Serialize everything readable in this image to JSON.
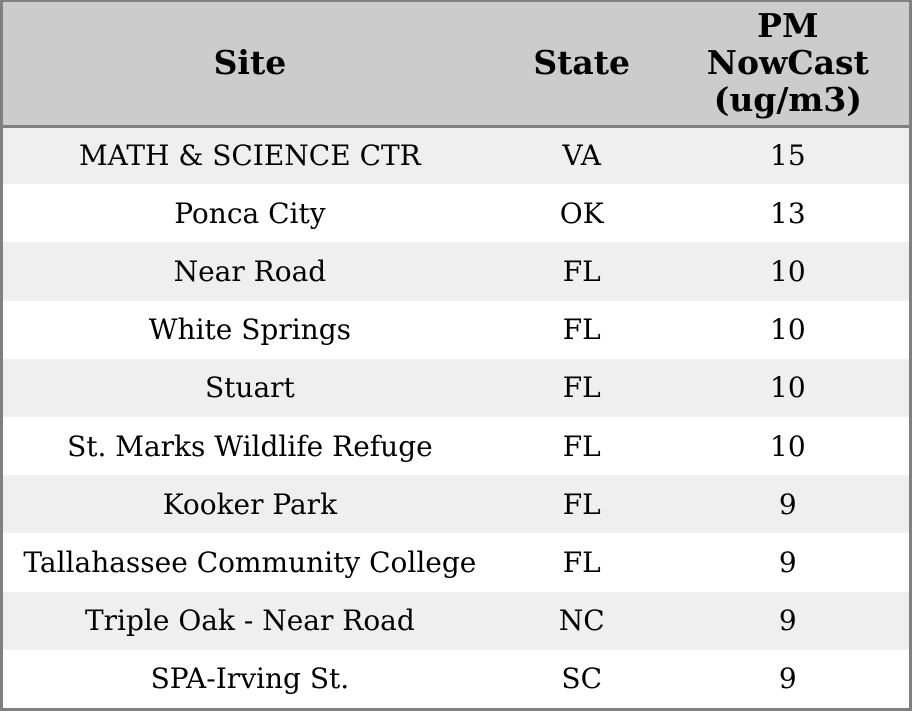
{
  "chart_data": {
    "type": "table",
    "columns": [
      "Site",
      "State",
      "PM NowCast (ug/m3)"
    ],
    "rows": [
      {
        "site": "MATH & SCIENCE CTR",
        "state": "VA",
        "pm_nowcast": 15
      },
      {
        "site": "Ponca City",
        "state": "OK",
        "pm_nowcast": 13
      },
      {
        "site": "Near Road",
        "state": "FL",
        "pm_nowcast": 10
      },
      {
        "site": "White Springs",
        "state": "FL",
        "pm_nowcast": 10
      },
      {
        "site": "Stuart",
        "state": "FL",
        "pm_nowcast": 10
      },
      {
        "site": "St. Marks Wildlife Refuge",
        "state": "FL",
        "pm_nowcast": 10
      },
      {
        "site": "Kooker Park",
        "state": "FL",
        "pm_nowcast": 9
      },
      {
        "site": "Tallahassee Community College",
        "state": "FL",
        "pm_nowcast": 9
      },
      {
        "site": "Triple Oak - Near Road",
        "state": "NC",
        "pm_nowcast": 9
      },
      {
        "site": "SPA-Irving St.",
        "state": "SC",
        "pm_nowcast": 9
      }
    ]
  },
  "header": {
    "site": "Site",
    "state": "State",
    "pm": "PM\nNowCast\n(ug/m3)"
  },
  "colors": {
    "header_bg": "#cccccc",
    "row_stripe_bg": "#efefef",
    "row_bg": "#ffffff",
    "border": "#808080",
    "text": "#000000"
  }
}
